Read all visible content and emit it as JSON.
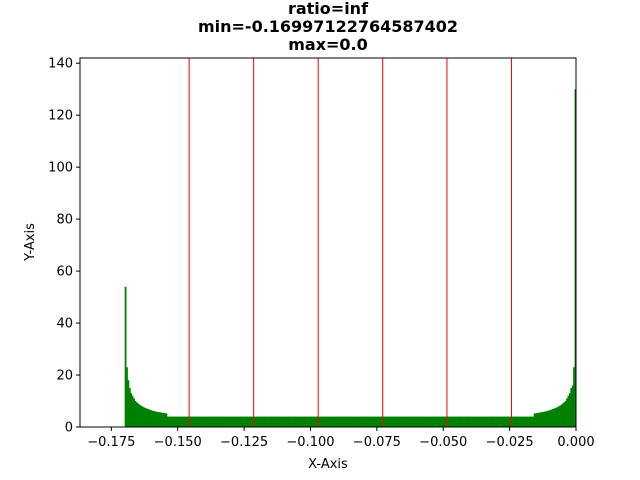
{
  "chart_data": {
    "type": "bar",
    "title_lines": [
      "ratio=inf",
      "min=-0.16997122764587402",
      "max=0.0"
    ],
    "xlabel": "X-Axis",
    "ylabel": "Y-Axis",
    "xlim": [
      -0.1868,
      0.0
    ],
    "ylim": [
      0,
      142
    ],
    "x_ticks": [
      -0.175,
      -0.15,
      -0.125,
      -0.1,
      -0.075,
      -0.05,
      -0.025,
      0.0
    ],
    "x_tick_labels": [
      "−0.175",
      "−0.150",
      "−0.125",
      "−0.100",
      "−0.075",
      "−0.050",
      "−0.025",
      "0.000"
    ],
    "y_ticks": [
      0,
      20,
      40,
      60,
      80,
      100,
      120,
      140
    ],
    "y_tick_labels": [
      "0",
      "20",
      "40",
      "60",
      "80",
      "100",
      "120",
      "140"
    ],
    "grid": false,
    "bar_color": "#008000",
    "vline_color": "#ff0000",
    "hist_range": [
      -0.16997122764587402,
      0.0
    ],
    "bin_count": 320,
    "bin_values_start": [
      54,
      23,
      18,
      15,
      13,
      12,
      11,
      10,
      9.5,
      9,
      8.6,
      8.2,
      7.9,
      7.6,
      7.3,
      7.1,
      6.9,
      6.7,
      6.5,
      6.3,
      6.2,
      6.0,
      5.9,
      5.8,
      5.7,
      5.6,
      5.5,
      5.4,
      5.3,
      5.2
    ],
    "bin_values_end": [
      5.2,
      5.3,
      5.4,
      5.5,
      5.6,
      5.7,
      5.8,
      5.9,
      6.0,
      6.2,
      6.3,
      6.5,
      6.7,
      6.9,
      7.1,
      7.3,
      7.6,
      7.9,
      8.2,
      8.6,
      9.0,
      9.5,
      10,
      11,
      12,
      13,
      15,
      16,
      23,
      130
    ],
    "bin_value_middle": 4.0,
    "vlines": [
      -0.1457,
      -0.1214,
      -0.0971,
      -0.0728,
      -0.0486,
      -0.0243
    ]
  }
}
